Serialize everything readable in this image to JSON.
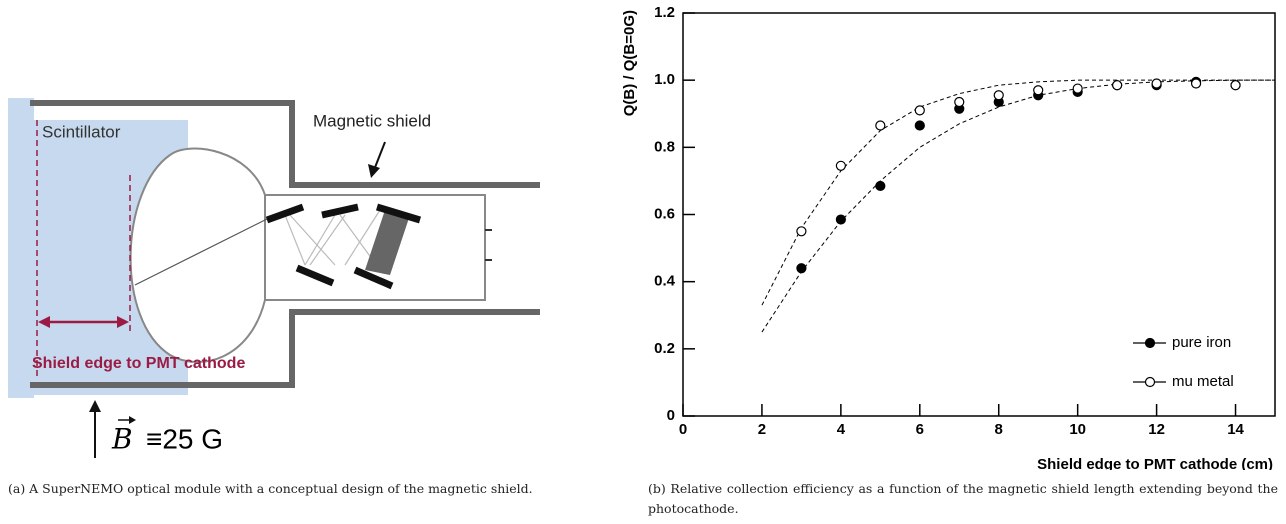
{
  "diagram": {
    "scintillator": "Scintillator",
    "shield": "Magnetic shield",
    "distance": "Shield edge to PMT cathode",
    "field_symbol": "B",
    "field_value": "≡25 G"
  },
  "captions": [
    "(a) A SuperNEMO optical module with a conceptual design of the magnetic shield.",
    "(b) Relative collection efficiency as a function of the magnetic shield length extending beyond the photocathode."
  ],
  "chart_data": {
    "type": "scatter",
    "xlabel": "Shield edge to PMT cathode (cm)",
    "ylabel": "Q(B) / Q(B=0G)",
    "xlim": [
      0,
      15
    ],
    "ylim": [
      0,
      1.2
    ],
    "xticks": [
      0,
      2,
      4,
      6,
      8,
      10,
      12,
      14
    ],
    "yticks": [
      0,
      0.2,
      0.4,
      0.6,
      0.8,
      {
        "value": 1,
        "label": "1.0"
      },
      1.2
    ],
    "legend": "lower right",
    "series": [
      {
        "name": "pure iron",
        "marker": "filled",
        "color": "#000000",
        "x": [
          3,
          4,
          5,
          6,
          7,
          8,
          9,
          10,
          11,
          12,
          13,
          14
        ],
        "values": [
          0.44,
          0.585,
          0.685,
          0.865,
          0.915,
          0.935,
          0.955,
          0.965,
          0.985,
          0.985,
          0.995,
          0.985
        ]
      },
      {
        "name": "mu metal",
        "marker": "open",
        "color": "#000000",
        "x": [
          3,
          4,
          5,
          6,
          7,
          8,
          9,
          10,
          11,
          12,
          13,
          14
        ],
        "values": [
          0.55,
          0.745,
          0.865,
          0.91,
          0.935,
          0.955,
          0.97,
          0.975,
          0.985,
          0.99,
          0.99,
          0.985
        ]
      }
    ],
    "fits": [
      {
        "x": [
          2,
          3,
          4,
          5,
          6,
          7,
          8,
          9,
          10,
          11,
          12,
          13,
          14,
          15
        ],
        "values": [
          0.25,
          0.43,
          0.58,
          0.7,
          0.8,
          0.87,
          0.92,
          0.955,
          0.975,
          0.988,
          0.995,
          0.998,
          1,
          1
        ]
      },
      {
        "x": [
          2,
          3,
          4,
          5,
          6,
          7,
          8,
          9,
          10,
          11,
          12,
          13,
          14,
          15
        ],
        "values": [
          0.33,
          0.56,
          0.73,
          0.85,
          0.92,
          0.96,
          0.985,
          0.995,
          1,
          1,
          1,
          1,
          1,
          1
        ]
      }
    ]
  }
}
